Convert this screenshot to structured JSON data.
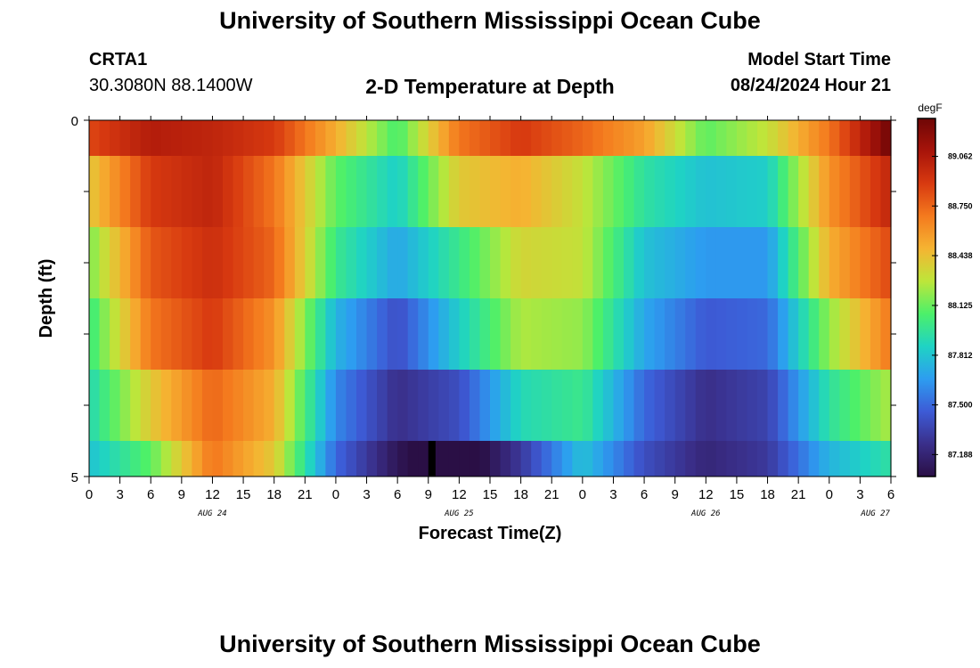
{
  "header": {
    "title": "University of Southern Mississippi Ocean Cube",
    "station_id": "CRTA1",
    "station_coords": "30.3080N  88.1400W",
    "chart_title": "2-D Temperature at Depth",
    "model_start_label": "Model Start Time",
    "model_start_value": "08/24/2024 Hour 21"
  },
  "footer": {
    "title": "University of Southern Mississippi Ocean Cube"
  },
  "chart_data": {
    "type": "heatmap",
    "title": "2-D Temperature at Depth",
    "xlabel": "Forecast Time(Z)",
    "ylabel": "Depth (ft)",
    "x_tick_labels": [
      "0",
      "3",
      "6",
      "9",
      "12",
      "15",
      "18",
      "21",
      "0",
      "3",
      "6",
      "9",
      "12",
      "15",
      "18",
      "21",
      "0",
      "3",
      "6",
      "9",
      "12",
      "15",
      "18",
      "21",
      "0",
      "3",
      "6"
    ],
    "date_labels": [
      {
        "text": "AUG 24",
        "tick_index": 4
      },
      {
        "text": "AUG 25",
        "tick_index": 12
      },
      {
        "text": "AUG 26",
        "tick_index": 20
      },
      {
        "text": "AUG 27",
        "tick_index": 25.5
      }
    ],
    "y_tick_labels": [
      "0",
      "5"
    ],
    "ylim": [
      0,
      5
    ],
    "grid": false,
    "colorbar": {
      "unit": "degF",
      "min": 87.05,
      "max": 89.3,
      "tick_labels": [
        "89.062",
        "88.750",
        "88.438",
        "88.125",
        "87.812",
        "87.500",
        "87.188"
      ],
      "tick_values": [
        89.062,
        88.75,
        88.438,
        88.125,
        87.812,
        87.5,
        87.188
      ],
      "colors": [
        "#2a0f45",
        "#3a2f8a",
        "#3d5bd6",
        "#2d9df0",
        "#1fd3c4",
        "#4cf06a",
        "#bde63a",
        "#f5b432",
        "#f47a1e",
        "#d83a10",
        "#a8140a",
        "#6e0606"
      ]
    },
    "hours_approx": [
      0,
      6,
      12,
      18,
      24,
      30,
      36,
      42,
      48,
      54,
      60,
      66,
      72,
      78
    ],
    "rows": [
      {
        "depth_band": "0-0.5",
        "values_approx": [
          88.85,
          89.05,
          89.0,
          88.9,
          88.5,
          88.05,
          88.7,
          88.9,
          88.75,
          88.55,
          88.1,
          88.3,
          88.7,
          89.3
        ]
      },
      {
        "depth_band": "0.5-1.5",
        "values_approx": [
          88.4,
          88.9,
          89.0,
          88.7,
          88.1,
          87.85,
          88.4,
          88.5,
          88.3,
          87.95,
          87.8,
          87.85,
          88.6,
          89.0
        ]
      },
      {
        "depth_band": "1.5-2.5",
        "values_approx": [
          88.15,
          88.8,
          88.95,
          88.75,
          88.0,
          87.7,
          88.0,
          88.35,
          88.3,
          87.8,
          87.65,
          87.65,
          88.5,
          88.85
        ]
      },
      {
        "depth_band": "2.5-3.5",
        "values_approx": [
          88.0,
          88.7,
          88.9,
          88.6,
          87.75,
          87.4,
          87.85,
          88.25,
          88.2,
          87.7,
          87.45,
          87.5,
          88.2,
          88.7
        ]
      },
      {
        "depth_band": "3.5-4.5",
        "values_approx": [
          87.9,
          88.4,
          88.75,
          88.5,
          87.6,
          87.25,
          87.4,
          87.9,
          88.0,
          87.5,
          87.25,
          87.35,
          87.95,
          88.25
        ]
      },
      {
        "depth_band": "4.5-5",
        "values_approx": [
          87.8,
          88.1,
          88.7,
          88.4,
          87.5,
          87.1,
          86.9,
          87.3,
          87.8,
          87.4,
          87.2,
          87.3,
          87.75,
          87.95
        ]
      }
    ]
  }
}
